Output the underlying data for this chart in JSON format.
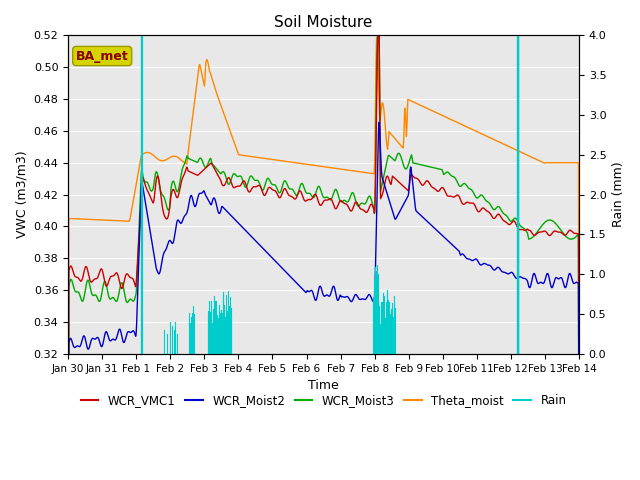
{
  "title": "Soil Moisture",
  "xlabel": "Time",
  "ylabel_left": "VWC (m3/m3)",
  "ylabel_right": "Rain (mm)",
  "ylim_left": [
    0.32,
    0.52
  ],
  "ylim_right": [
    0.0,
    4.0
  ],
  "yticks_left": [
    0.32,
    0.34,
    0.36,
    0.38,
    0.4,
    0.42,
    0.44,
    0.46,
    0.48,
    0.5,
    0.52
  ],
  "yticks_right": [
    0.0,
    0.5,
    1.0,
    1.5,
    2.0,
    2.5,
    3.0,
    3.5,
    4.0
  ],
  "xtick_labels": [
    "Jan 30",
    "Jan 31",
    "Feb 1",
    "Feb 2",
    "Feb 3",
    "Feb 4",
    "Feb 5",
    "Feb 6",
    "Feb 7",
    "Feb 8",
    "Feb 9",
    "Feb 10",
    "Feb 11",
    "Feb 12",
    "Feb 13",
    "Feb 14"
  ],
  "colors": {
    "WCR_VMC1": "#cc0000",
    "WCR_Moist2": "#0000cc",
    "WCR_Moist3": "#00aa00",
    "Theta_moist": "#ff8800",
    "Rain": "#00cccc"
  },
  "bg_color": "#e8e8e8",
  "station_label": "BA_met",
  "station_label_color": "#8b0000",
  "station_box_color": "#d4d400"
}
